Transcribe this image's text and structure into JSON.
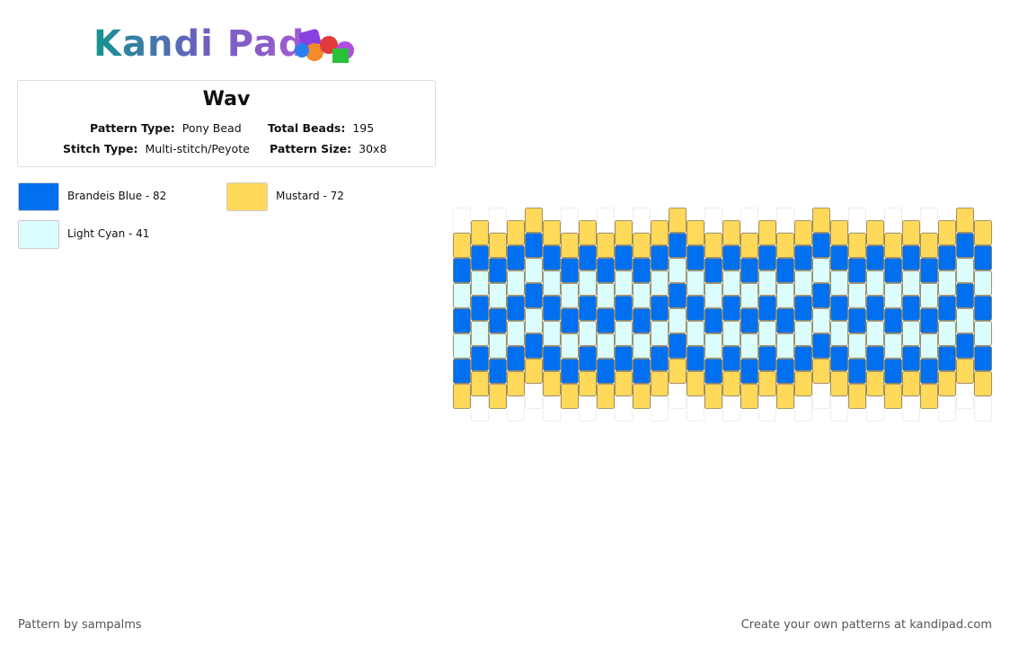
{
  "header": {
    "logo": "Kandi Pad"
  },
  "info": {
    "title": "Wav",
    "fields": [
      {
        "label": "Pattern Type:",
        "value": "Pony Bead"
      },
      {
        "label": "Total Beads:",
        "value": "195"
      },
      {
        "label": "Stitch Type:",
        "value": "Multi-stitch/Peyote"
      },
      {
        "label": "Pattern Size:",
        "value": "30x8"
      }
    ]
  },
  "legend": [
    {
      "label": "Brandeis Blue - 82",
      "color": "#0070f0"
    },
    {
      "label": "Mustard - 72",
      "color": "#ffd95a"
    },
    {
      "label": "Light Cyan - 41",
      "color": "#dcfdfd"
    }
  ],
  "footer": {
    "left": "Pattern by sampalms",
    "right": "Create your own patterns at kandipad.com"
  }
}
